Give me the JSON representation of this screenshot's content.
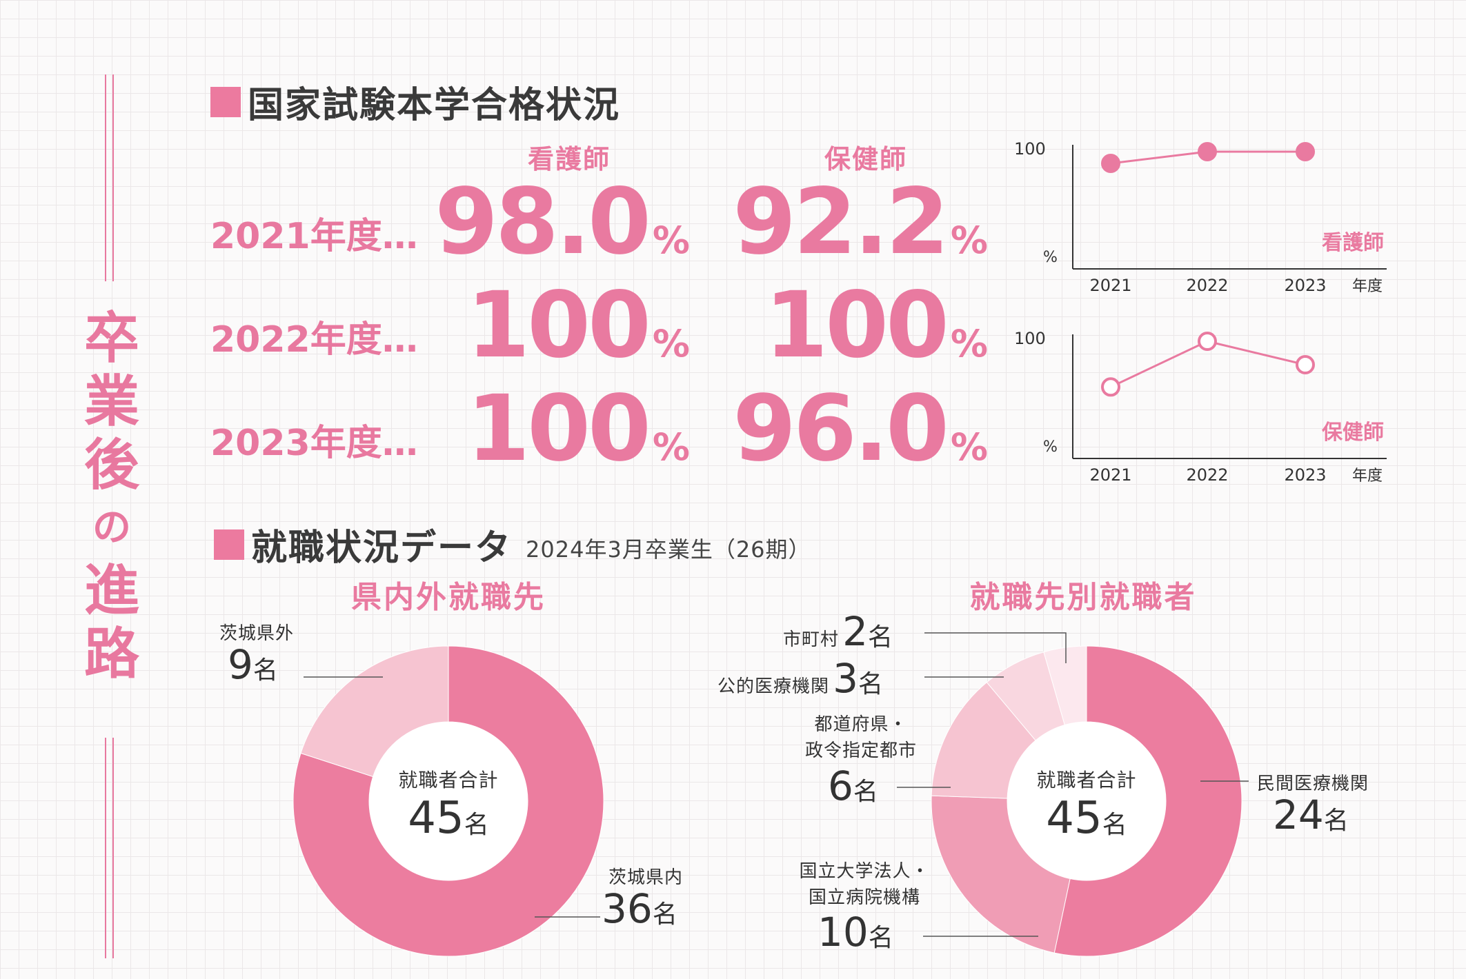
{
  "side_title": [
    "卒",
    "業",
    "後",
    "の",
    "進",
    "路"
  ],
  "exam_section": {
    "title": "国家試験本学合格状況",
    "columns": [
      "看護師",
      "保健師"
    ],
    "rows": [
      {
        "year": "2021年度…",
        "nurse": "98.0",
        "phn": "92.2"
      },
      {
        "year": "2022年度…",
        "nurse": "100",
        "phn": "100"
      },
      {
        "year": "2023年度…",
        "nurse": "100",
        "phn": "96.0"
      }
    ],
    "pct": "%"
  },
  "employment_section": {
    "title": "就職状況データ",
    "subtitle": "2024年3月卒業生（26期）",
    "total_label": "就職者合計",
    "unit": "名"
  },
  "chart_data": [
    {
      "type": "line",
      "legend": "看護師",
      "x": [
        "2021",
        "2022",
        "2023"
      ],
      "values": [
        98.0,
        100,
        100
      ],
      "ytick_label": "100",
      "yunit": "%",
      "xunit": "年度",
      "marker": "filled",
      "color": "#e97aa0"
    },
    {
      "type": "line",
      "legend": "保健師",
      "x": [
        "2021",
        "2022",
        "2023"
      ],
      "values": [
        92.2,
        100,
        96.0
      ],
      "ytick_label": "100",
      "yunit": "%",
      "xunit": "年度",
      "marker": "hollow",
      "color": "#e97aa0"
    },
    {
      "type": "pie",
      "title": "県内外就職先",
      "center_label": "就職者合計",
      "total": "45",
      "slices": [
        {
          "label": "茨城県内",
          "value": 36,
          "color": "#ec7d9f"
        },
        {
          "label": "茨城県外",
          "value": 9,
          "color": "#f6c4d1"
        }
      ]
    },
    {
      "type": "pie",
      "title": "就職先別就職者",
      "center_label": "就職者合計",
      "total": "45",
      "slices": [
        {
          "label": "民間医療機関",
          "value": 24,
          "color": "#ec7d9f"
        },
        {
          "label": "国立大学法人・国立病院機構",
          "value": 10,
          "color": "#f09db5"
        },
        {
          "label": "都道府県・政令指定都市",
          "value": 6,
          "color": "#f6c4d1"
        },
        {
          "label": "公的医療機関",
          "value": 3,
          "color": "#f9d7e0"
        },
        {
          "label": "市町村",
          "value": 2,
          "color": "#fce8ee"
        }
      ]
    }
  ],
  "pie_labels": {
    "left": {
      "out_label": "茨城県外",
      "out_num": "9",
      "in_label": "茨城県内",
      "in_num": "36"
    },
    "right": {
      "municipal_label": "市町村",
      "municipal_num": "2",
      "public_label": "公的医療機関",
      "public_num": "3",
      "pref_label1": "都道府県・",
      "pref_label2": "政令指定都市",
      "pref_num": "6",
      "national_label1": "国立大学法人・",
      "national_label2": "国立病院機構",
      "national_num": "10",
      "private_label": "民間医療機関",
      "private_num": "24"
    }
  }
}
